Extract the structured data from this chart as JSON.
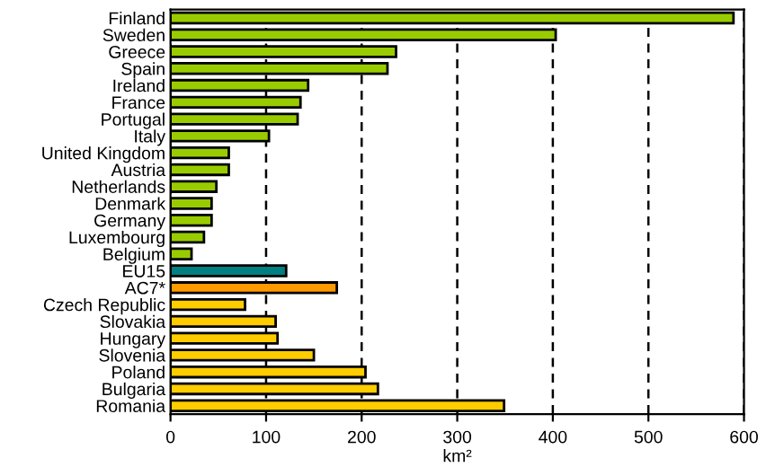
{
  "chart_data": {
    "type": "bar",
    "orientation": "horizontal",
    "xlabel": "km²",
    "categories": [
      "Finland",
      "Sweden",
      "Greece",
      "Spain",
      "Ireland",
      "France",
      "Portugal",
      "Italy",
      "United Kingdom",
      "Austria",
      "Netherlands",
      "Denmark",
      "Germany",
      "Luxembourg",
      "Belgium",
      "EU15",
      "AC7*",
      "Czech Republic",
      "Slovakia",
      "Hungary",
      "Slovenia",
      "Poland",
      "Bulgaria",
      "Romania"
    ],
    "values": [
      589,
      403,
      236,
      227,
      144,
      136,
      133,
      103,
      61,
      61,
      48,
      43,
      43,
      35,
      22,
      121,
      174,
      78,
      110,
      112,
      150,
      204,
      217,
      349
    ],
    "colors": [
      "#99cc00",
      "#99cc00",
      "#99cc00",
      "#99cc00",
      "#99cc00",
      "#99cc00",
      "#99cc00",
      "#99cc00",
      "#99cc00",
      "#99cc00",
      "#99cc00",
      "#99cc00",
      "#99cc00",
      "#99cc00",
      "#99cc00",
      "#008080",
      "#ff9900",
      "#ffcc00",
      "#ffcc00",
      "#ffcc00",
      "#ffcc00",
      "#ffcc00",
      "#ffcc00",
      "#ffcc00"
    ],
    "xlim": [
      0,
      600
    ],
    "xticks": [
      0,
      100,
      200,
      300,
      400,
      500,
      600
    ],
    "grid": "x",
    "line_style": "dashed"
  }
}
